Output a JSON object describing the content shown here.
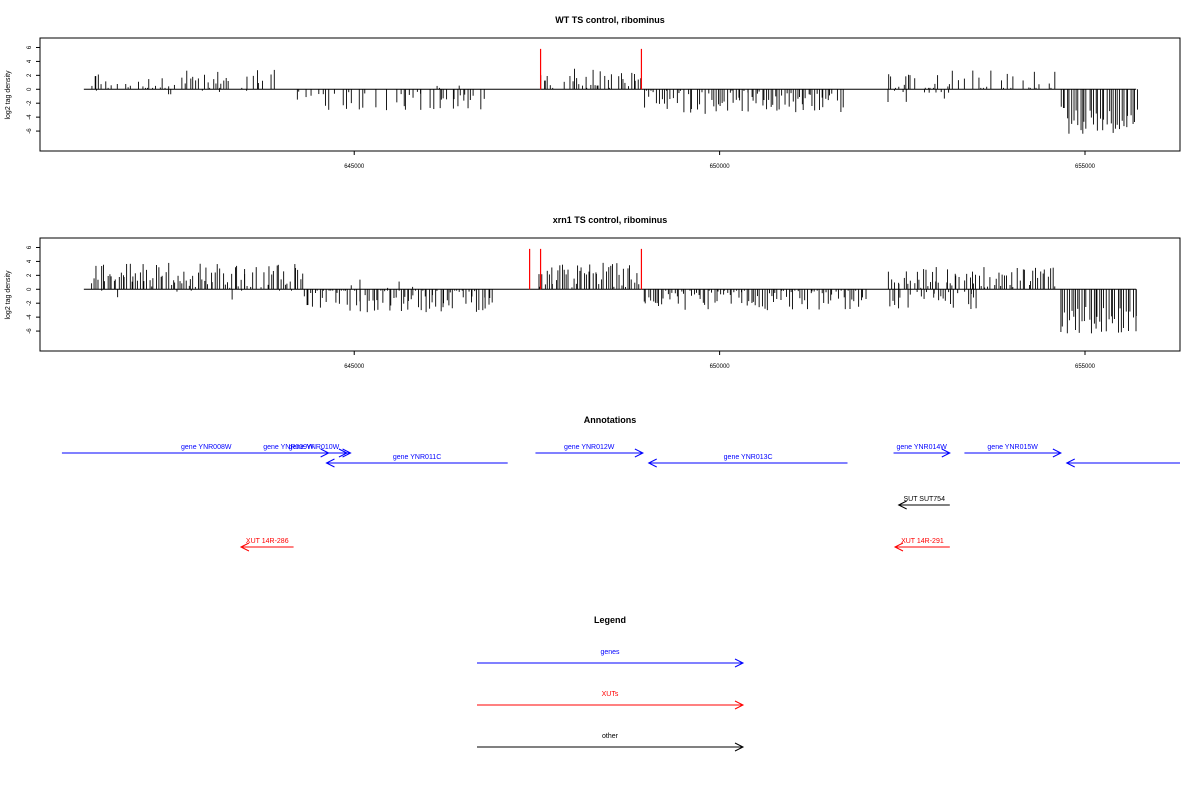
{
  "colors": {
    "gene": "#0000ff",
    "xut": "#ff0000",
    "other": "#000000",
    "highlight": "#ff0000",
    "bar": "#000000"
  },
  "chart_data": [
    {
      "type": "bar",
      "title": "WT TS control, ribominus",
      "ylabel": "log2 tag density",
      "xlim": [
        640700,
        656300
      ],
      "ylim": [
        -8,
        6.5
      ],
      "yticks": [
        -6,
        -4,
        -2,
        0,
        2,
        4,
        6
      ],
      "xticks": [
        645000,
        650000,
        655000
      ],
      "grid": false,
      "data_range": [
        641300,
        655700
      ],
      "highlights": [
        {
          "x": 647550,
          "y": 5.8
        },
        {
          "x": 648930,
          "y": 5.8
        }
      ],
      "segments": [
        {
          "start": 641400,
          "end": 643900,
          "sign": 1,
          "mean": 1.2,
          "spread": 1.6,
          "density": 0.55,
          "seed": 11
        },
        {
          "start": 641400,
          "end": 643900,
          "sign": -1,
          "mean": 0.3,
          "spread": 0.8,
          "density": 0.05,
          "seed": 12
        },
        {
          "start": 644200,
          "end": 646800,
          "sign": -1,
          "mean": 1.6,
          "spread": 1.4,
          "density": 0.5,
          "seed": 13
        },
        {
          "start": 644200,
          "end": 646800,
          "sign": 1,
          "mean": 0.5,
          "spread": 1.0,
          "density": 0.04,
          "seed": 14
        },
        {
          "start": 647550,
          "end": 648900,
          "sign": 1,
          "mean": 1.6,
          "spread": 1.5,
          "density": 0.85,
          "seed": 15
        },
        {
          "start": 648950,
          "end": 651700,
          "sign": -1,
          "mean": 1.8,
          "spread": 1.8,
          "density": 0.9,
          "seed": 16
        },
        {
          "start": 652300,
          "end": 654600,
          "sign": 1,
          "mean": 1.2,
          "spread": 1.5,
          "density": 0.5,
          "seed": 17
        },
        {
          "start": 652300,
          "end": 653300,
          "sign": -1,
          "mean": 1.0,
          "spread": 1.0,
          "density": 0.25,
          "seed": 18
        },
        {
          "start": 654650,
          "end": 655700,
          "sign": -1,
          "mean": 4.5,
          "spread": 2.0,
          "density": 1.0,
          "seed": 19
        }
      ]
    },
    {
      "type": "bar",
      "title": "xrn1 TS control, ribominus",
      "ylabel": "log2 tag density",
      "xlim": [
        640700,
        656300
      ],
      "ylim": [
        -8,
        6.5
      ],
      "yticks": [
        -6,
        -4,
        -2,
        0,
        2,
        4,
        6
      ],
      "xticks": [
        645000,
        650000,
        655000
      ],
      "grid": false,
      "data_range": [
        641300,
        655700
      ],
      "highlights": [
        {
          "x": 647400,
          "y": 5.8
        },
        {
          "x": 647550,
          "y": 5.8
        },
        {
          "x": 648930,
          "y": 5.8
        }
      ],
      "segments": [
        {
          "start": 641400,
          "end": 644300,
          "sign": 1,
          "mean": 2.0,
          "spread": 1.8,
          "density": 0.95,
          "seed": 21
        },
        {
          "start": 641400,
          "end": 644300,
          "sign": -1,
          "mean": 0.6,
          "spread": 1.0,
          "density": 0.1,
          "seed": 22
        },
        {
          "start": 644300,
          "end": 646900,
          "sign": -1,
          "mean": 1.5,
          "spread": 1.8,
          "density": 0.95,
          "seed": 23
        },
        {
          "start": 644300,
          "end": 646900,
          "sign": 1,
          "mean": 0.6,
          "spread": 1.0,
          "density": 0.05,
          "seed": 24
        },
        {
          "start": 647500,
          "end": 648900,
          "sign": 1,
          "mean": 2.0,
          "spread": 1.8,
          "density": 1.0,
          "seed": 25
        },
        {
          "start": 648950,
          "end": 652000,
          "sign": -1,
          "mean": 1.3,
          "spread": 1.7,
          "density": 0.95,
          "seed": 26
        },
        {
          "start": 652300,
          "end": 654600,
          "sign": 1,
          "mean": 1.8,
          "spread": 1.6,
          "density": 0.8,
          "seed": 27
        },
        {
          "start": 652300,
          "end": 653500,
          "sign": -1,
          "mean": 1.5,
          "spread": 1.5,
          "density": 0.6,
          "seed": 28
        },
        {
          "start": 654650,
          "end": 655700,
          "sign": -1,
          "mean": 4.5,
          "spread": 2.0,
          "density": 1.0,
          "seed": 29
        }
      ]
    }
  ],
  "annotations": {
    "title": "Annotations",
    "xlim": [
      640700,
      656300
    ],
    "items": [
      {
        "label": "gene YNR008W",
        "start": 641000,
        "end": 644950,
        "strand": "+",
        "type": "gene",
        "row": 0
      },
      {
        "label": "gene YNR009W",
        "start": 643550,
        "end": 644650,
        "strand": "+",
        "type": "gene",
        "row": 0
      },
      {
        "label": "gene YNR010W",
        "start": 644000,
        "end": 644900,
        "strand": "+",
        "type": "gene",
        "row": 0
      },
      {
        "label": "gene YNR011C",
        "start": 644620,
        "end": 647100,
        "strand": "-",
        "type": "gene",
        "row": 1
      },
      {
        "label": "gene YNR012W",
        "start": 647480,
        "end": 648950,
        "strand": "+",
        "type": "gene",
        "row": 0
      },
      {
        "label": "gene YNR013C",
        "start": 649030,
        "end": 651750,
        "strand": "-",
        "type": "gene",
        "row": 1
      },
      {
        "label": "gene YNR014W",
        "start": 652380,
        "end": 653150,
        "strand": "+",
        "type": "gene",
        "row": 0
      },
      {
        "label": "gene YNR015W",
        "start": 653350,
        "end": 654670,
        "strand": "+",
        "type": "gene",
        "row": 0
      },
      {
        "label": "",
        "start": 654750,
        "end": 656300,
        "strand": "-",
        "type": "gene",
        "row": 1
      },
      {
        "label": "SUT SUT754",
        "start": 652450,
        "end": 653150,
        "strand": "-",
        "type": "other",
        "row": 2
      },
      {
        "label": "XUT 14R-286",
        "start": 643450,
        "end": 644170,
        "strand": "-",
        "type": "xut",
        "row": 3
      },
      {
        "label": "XUT 14R-291",
        "start": 652400,
        "end": 653150,
        "strand": "-",
        "type": "xut",
        "row": 3
      }
    ]
  },
  "legend": {
    "title": "Legend",
    "items": [
      {
        "label": "genes",
        "type": "gene"
      },
      {
        "label": "XUTs",
        "type": "xut"
      },
      {
        "label": "other",
        "type": "other"
      }
    ]
  }
}
